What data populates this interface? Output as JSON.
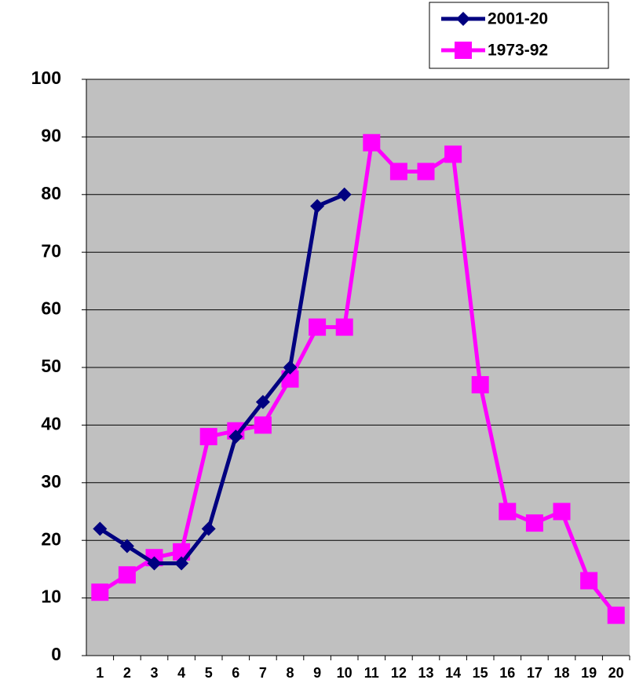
{
  "chart_data": {
    "type": "line",
    "categories": [
      "1",
      "2",
      "3",
      "4",
      "5",
      "6",
      "7",
      "8",
      "9",
      "10",
      "11",
      "12",
      "13",
      "14",
      "15",
      "16",
      "17",
      "18",
      "19",
      "20"
    ],
    "series": [
      {
        "name": "2001-20",
        "color": "#000080",
        "marker": "diamond",
        "values": [
          22,
          19,
          16,
          16,
          22,
          38,
          44,
          50,
          78,
          80,
          null,
          null,
          null,
          null,
          null,
          null,
          null,
          null,
          null,
          null
        ]
      },
      {
        "name": "1973-92",
        "color": "#ff00ff",
        "marker": "square",
        "values": [
          11,
          14,
          17,
          18,
          38,
          39,
          40,
          48,
          57,
          57,
          89,
          84,
          84,
          87,
          47,
          25,
          23,
          25,
          13,
          7
        ]
      }
    ],
    "ylim": [
      0,
      100
    ],
    "yticks": [
      0,
      10,
      20,
      30,
      40,
      50,
      60,
      70,
      80,
      90,
      100
    ],
    "grid": true,
    "legend": "top-right"
  }
}
